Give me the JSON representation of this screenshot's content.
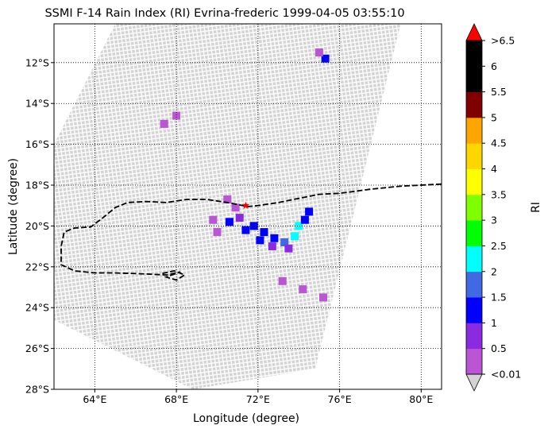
{
  "chart_data": {
    "type": "heatmap",
    "title": "SSMI F-14 Rain Index (RI) Evrina-frederic 1999-04-05 03:55:10",
    "xlabel": "Longitude (degree)",
    "ylabel": "Latitude (degree)",
    "xlim": [
      62,
      81
    ],
    "ylim": [
      -28,
      -10.1
    ],
    "x_ticks": [
      64,
      68,
      72,
      76,
      80
    ],
    "x_tick_labels": [
      "64°E",
      "68°E",
      "72°E",
      "76°E",
      "80°E"
    ],
    "y_ticks": [
      -28,
      -26,
      -24,
      -22,
      -20,
      -18,
      -16,
      -14,
      -12
    ],
    "y_tick_labels": [
      "28°S",
      "26°S",
      "24°S",
      "22°S",
      "20°S",
      "18°S",
      "16°S",
      "14°S",
      "12°S"
    ],
    "grid": true,
    "colorbar": {
      "label": "RI",
      "levels": [
        0.01,
        0.5,
        1,
        1.5,
        2,
        2.5,
        3,
        3.5,
        4,
        4.5,
        5,
        5.5,
        6,
        6.5
      ],
      "tick_labels": [
        "<0.01",
        "0.5",
        "1",
        "1.5",
        "2",
        "2.5",
        "3",
        "3.5",
        "4",
        "4.5",
        "5",
        "5.5",
        "6",
        ">6.5"
      ],
      "colors": [
        "#ba55d3",
        "#8a2be2",
        "#0000ff",
        "#4169e1",
        "#00ffff",
        "#00ff00",
        "#7fff00",
        "#ffff00",
        "#ffd700",
        "#ffa500",
        "#800000",
        "#000000",
        "#000000"
      ],
      "under_color": "#d3d3d3",
      "over_color": "#ff0000"
    },
    "swath": {
      "polygon": [
        [
          65.0,
          -10.1
        ],
        [
          79.0,
          -10.1
        ],
        [
          74.8,
          -27.0
        ],
        [
          68.8,
          -28.0
        ],
        [
          62.0,
          -24.6
        ],
        [
          62.0,
          -16.0
        ]
      ],
      "no_rain_color": "#d3d3d3"
    },
    "rain_cells": [
      {
        "lon": 70.5,
        "lat": -18.7,
        "ri": 0.3
      },
      {
        "lon": 70.9,
        "lat": -19.1,
        "ri": 0.4
      },
      {
        "lon": 70.6,
        "lat": -19.8,
        "ri": 1.0
      },
      {
        "lon": 71.1,
        "lat": -19.6,
        "ri": 0.8
      },
      {
        "lon": 71.4,
        "lat": -20.2,
        "ri": 1.2
      },
      {
        "lon": 71.8,
        "lat": -20.0,
        "ri": 1.3
      },
      {
        "lon": 72.3,
        "lat": -20.3,
        "ri": 1.1
      },
      {
        "lon": 72.1,
        "lat": -20.7,
        "ri": 1.4
      },
      {
        "lon": 72.8,
        "lat": -20.6,
        "ri": 1.3
      },
      {
        "lon": 73.3,
        "lat": -20.8,
        "ri": 1.6
      },
      {
        "lon": 73.8,
        "lat": -20.5,
        "ri": 2.1
      },
      {
        "lon": 74.0,
        "lat": -20.0,
        "ri": 2.4
      },
      {
        "lon": 74.3,
        "lat": -19.7,
        "ri": 1.4
      },
      {
        "lon": 74.5,
        "lat": -19.3,
        "ri": 1.1
      },
      {
        "lon": 73.5,
        "lat": -21.1,
        "ri": 0.8
      },
      {
        "lon": 72.7,
        "lat": -21.0,
        "ri": 0.7
      },
      {
        "lon": 70.0,
        "lat": -20.3,
        "ri": 0.3
      },
      {
        "lon": 69.8,
        "lat": -19.7,
        "ri": 0.2
      },
      {
        "lon": 75.3,
        "lat": -11.8,
        "ri": 1.2
      },
      {
        "lon": 75.0,
        "lat": -11.5,
        "ri": 0.4
      },
      {
        "lon": 68.0,
        "lat": -14.6,
        "ri": 0.3
      },
      {
        "lon": 67.4,
        "lat": -15.0,
        "ri": 0.2
      },
      {
        "lon": 73.2,
        "lat": -22.7,
        "ri": 0.3
      },
      {
        "lon": 74.2,
        "lat": -23.1,
        "ri": 0.3
      },
      {
        "lon": 75.2,
        "lat": -23.5,
        "ri": 0.2
      }
    ],
    "track": {
      "style": "dashed",
      "color": "#000000",
      "points": [
        [
          81.0,
          -17.95
        ],
        [
          79.0,
          -18.05
        ],
        [
          77.5,
          -18.2
        ],
        [
          76.0,
          -18.4
        ],
        [
          75.0,
          -18.45
        ],
        [
          74.0,
          -18.65
        ],
        [
          73.0,
          -18.85
        ],
        [
          72.0,
          -19.0
        ],
        [
          71.5,
          -19.05
        ],
        [
          70.5,
          -18.85
        ],
        [
          69.5,
          -18.7
        ],
        [
          68.5,
          -18.7
        ],
        [
          67.5,
          -18.85
        ],
        [
          66.5,
          -18.8
        ],
        [
          65.6,
          -18.85
        ],
        [
          65.0,
          -19.1
        ],
        [
          64.4,
          -19.6
        ],
        [
          63.8,
          -20.05
        ],
        [
          63.0,
          -20.1
        ],
        [
          62.5,
          -20.3
        ],
        [
          62.35,
          -21.0
        ],
        [
          62.35,
          -21.9
        ],
        [
          63.0,
          -22.2
        ],
        [
          64.0,
          -22.3
        ],
        [
          65.0,
          -22.3
        ],
        [
          66.5,
          -22.35
        ],
        [
          67.5,
          -22.4
        ],
        [
          68.2,
          -22.25
        ],
        [
          67.5,
          -22.5
        ],
        [
          68.0,
          -22.65
        ],
        [
          68.4,
          -22.4
        ],
        [
          67.9,
          -22.2
        ],
        [
          67.2,
          -22.35
        ]
      ]
    },
    "center_marker": {
      "lon": 71.4,
      "lat": -19.0,
      "symbol": "star",
      "color": "#ff0000"
    }
  }
}
